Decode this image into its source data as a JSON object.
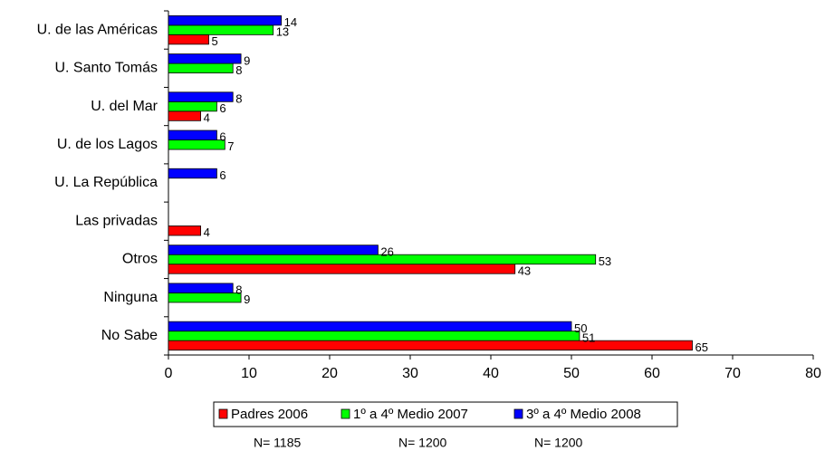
{
  "chart_data": {
    "type": "hbar",
    "categories": [
      "U. de las Américas",
      "U. Santo Tomás",
      "U. del Mar",
      "U. de los Lagos",
      "U. La República",
      "Las privadas",
      "Otros",
      "Ninguna",
      "No Sabe"
    ],
    "series": [
      {
        "name": "Padres 2006",
        "color": "#ff0000",
        "values": [
          5,
          null,
          4,
          null,
          null,
          4,
          43,
          null,
          65
        ]
      },
      {
        "name": "1º a 4º Medio 2007",
        "color": "#00ff00",
        "values": [
          13,
          8,
          6,
          7,
          null,
          null,
          53,
          9,
          51
        ]
      },
      {
        "name": "3º a 4º Medio 2008",
        "color": "#0000ff",
        "values": [
          14,
          9,
          8,
          6,
          6,
          null,
          26,
          8,
          50
        ]
      }
    ],
    "xlim": [
      0,
      80
    ],
    "xticks": [
      0,
      10,
      20,
      30,
      40,
      50,
      60,
      70,
      80
    ],
    "notes": [
      "N= 1185",
      "N= 1200",
      "N= 1200"
    ]
  }
}
